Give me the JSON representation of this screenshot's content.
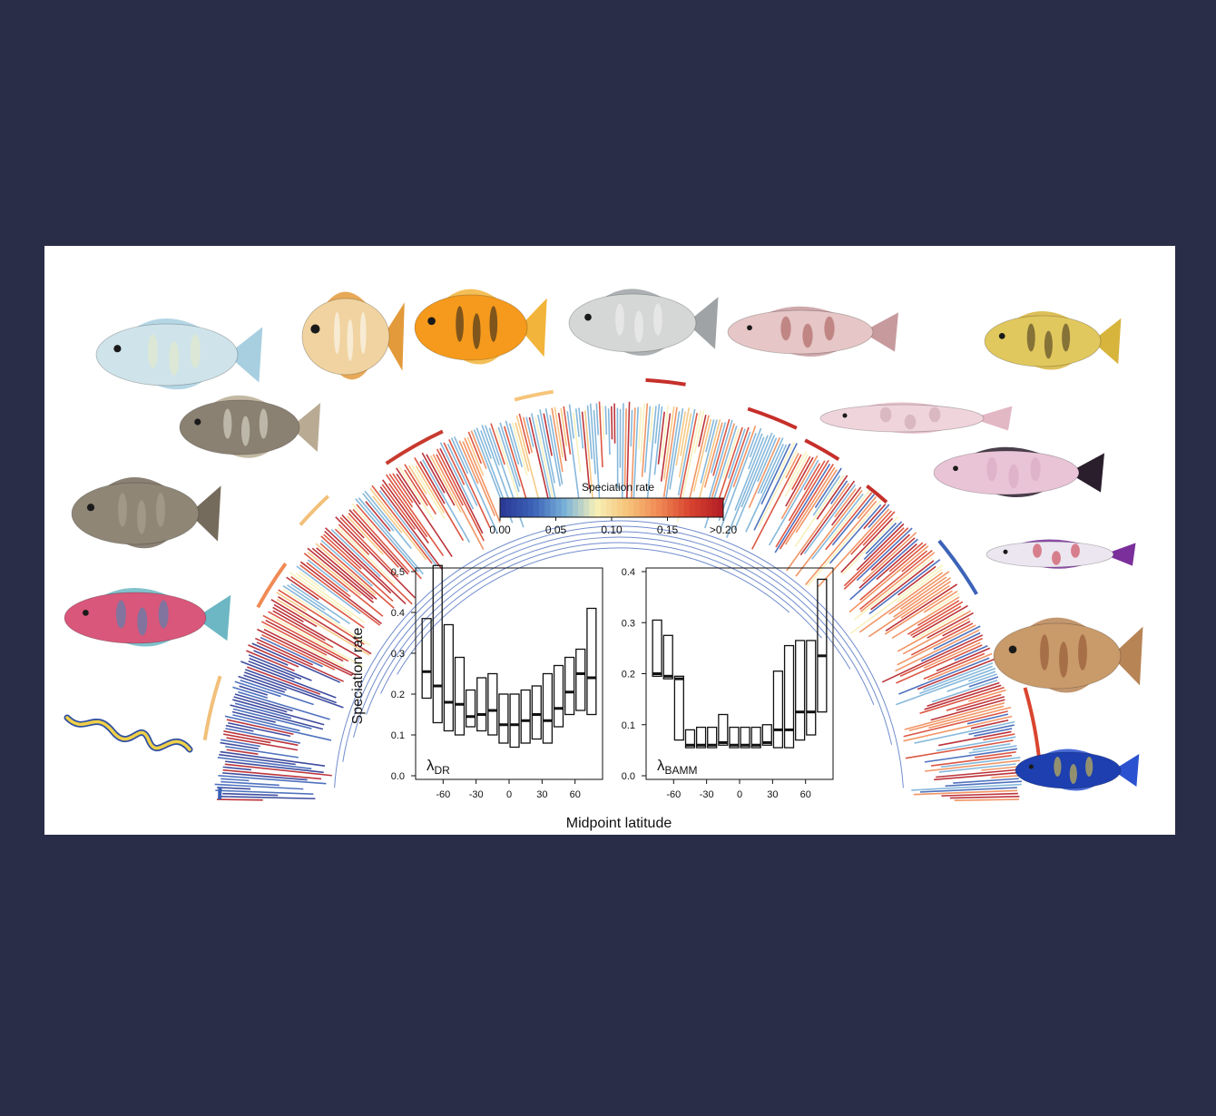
{
  "colors": {
    "background": "#2a2d47",
    "panel": "#ffffff",
    "rate_scale": [
      "#2b3a96",
      "#3c63b8",
      "#7ab1d8",
      "#f7f0b7",
      "#f6c47a",
      "#f08a55",
      "#d9452f",
      "#b51f26"
    ]
  },
  "colorbar": {
    "title": "Speciation rate",
    "ticks": [
      "0.00",
      "0.05",
      "0.10",
      "0.15",
      ">0.20"
    ]
  },
  "shared_axis": {
    "xlabel": "Midpoint latitude",
    "ylabel": "Speciation rate"
  },
  "chart_data": [
    {
      "type": "box",
      "panel_label_main": "λ",
      "panel_label_sub": "DR",
      "ylim": [
        0,
        0.5
      ],
      "yticks": [
        "0.0",
        "0.1",
        "0.2",
        "0.3",
        "0.4",
        "0.5"
      ],
      "xlim": [
        -85,
        85
      ],
      "xticks": [
        "-60",
        "-30",
        "0",
        "30",
        "60"
      ],
      "x": [
        -75,
        -65,
        -55,
        -45,
        -35,
        -25,
        -15,
        -5,
        5,
        15,
        25,
        35,
        45,
        55,
        65,
        75
      ],
      "low": [
        0.19,
        0.13,
        0.11,
        0.1,
        0.12,
        0.11,
        0.1,
        0.08,
        0.07,
        0.08,
        0.09,
        0.08,
        0.12,
        0.15,
        0.16,
        0.15
      ],
      "median": [
        0.255,
        0.22,
        0.18,
        0.175,
        0.145,
        0.15,
        0.16,
        0.125,
        0.125,
        0.135,
        0.15,
        0.135,
        0.165,
        0.205,
        0.25,
        0.24
      ],
      "high": [
        0.385,
        0.515,
        0.37,
        0.29,
        0.21,
        0.24,
        0.25,
        0.2,
        0.2,
        0.21,
        0.22,
        0.25,
        0.27,
        0.29,
        0.31,
        0.41
      ]
    },
    {
      "type": "box",
      "panel_label_main": "λ",
      "panel_label_sub": "BAMM",
      "ylim": [
        0,
        0.4
      ],
      "yticks": [
        "0.0",
        "0.1",
        "0.2",
        "0.3",
        "0.4"
      ],
      "xlim": [
        -85,
        85
      ],
      "xticks": [
        "-60",
        "-30",
        "0",
        "30",
        "60"
      ],
      "x": [
        -75,
        -65,
        -55,
        -45,
        -35,
        -25,
        -15,
        -5,
        5,
        15,
        25,
        35,
        45,
        55,
        65,
        75
      ],
      "low": [
        0.195,
        0.19,
        0.07,
        0.055,
        0.055,
        0.055,
        0.06,
        0.055,
        0.055,
        0.055,
        0.06,
        0.055,
        0.055,
        0.07,
        0.08,
        0.125
      ],
      "median": [
        0.2,
        0.195,
        0.19,
        0.06,
        0.06,
        0.06,
        0.065,
        0.06,
        0.06,
        0.06,
        0.065,
        0.09,
        0.09,
        0.125,
        0.125,
        0.235
      ],
      "high": [
        0.305,
        0.275,
        0.195,
        0.09,
        0.095,
        0.095,
        0.12,
        0.095,
        0.095,
        0.095,
        0.1,
        0.205,
        0.255,
        0.265,
        0.265,
        0.385
      ]
    }
  ],
  "fish": [
    {
      "name": "unicornfish",
      "body": "#cfe3ea",
      "fin": "#a8cfe0",
      "accent": "#e8ecc2"
    },
    {
      "name": "butterflyfish",
      "body": "#f0d3a0",
      "fin": "#e39a3a",
      "accent": "#ffffff"
    },
    {
      "name": "flame-angelfish",
      "body": "#f59a1c",
      "fin": "#f2b43a",
      "accent": "#1e1e1e"
    },
    {
      "name": "grunt",
      "body": "#d4d7d6",
      "fin": "#9fa3a6",
      "accent": "#f2f2f2"
    },
    {
      "name": "flathead",
      "body": "#e6c6c6",
      "fin": "#c79a9e",
      "accent": "#a0524f"
    },
    {
      "name": "rockfish",
      "body": "#e1c85e",
      "fin": "#d7b43c",
      "accent": "#3b2c18"
    },
    {
      "name": "pufferfish",
      "body": "#8a8172",
      "fin": "#b9ab93",
      "accent": "#e8e4d8"
    },
    {
      "name": "triggerfish",
      "body": "#8f8676",
      "fin": "#756b5c",
      "accent": "#b1a894"
    },
    {
      "name": "parrotfish",
      "body": "#d8577a",
      "fin": "#6cb7c3",
      "accent": "#3a8dbd"
    },
    {
      "name": "eel",
      "body": "#f0d048",
      "fin": "#2f4fa2",
      "accent": "#ffffff"
    },
    {
      "name": "eelpout",
      "body": "#efd4dc",
      "fin": "#e2b8c4",
      "accent": "#c8a0ad"
    },
    {
      "name": "snailfish",
      "body": "#e9c4d6",
      "fin": "#2a1d2c",
      "accent": "#d7a6bf"
    },
    {
      "name": "dartfish",
      "body": "#ece6f0",
      "fin": "#7a2f9a",
      "accent": "#c6283d"
    },
    {
      "name": "flounder",
      "body": "#c99a6a",
      "fin": "#b78456",
      "accent": "#8a4d2a"
    },
    {
      "name": "damselfish",
      "body": "#1d3fb0",
      "fin": "#2a52d0",
      "accent": "#f2d33a"
    }
  ]
}
